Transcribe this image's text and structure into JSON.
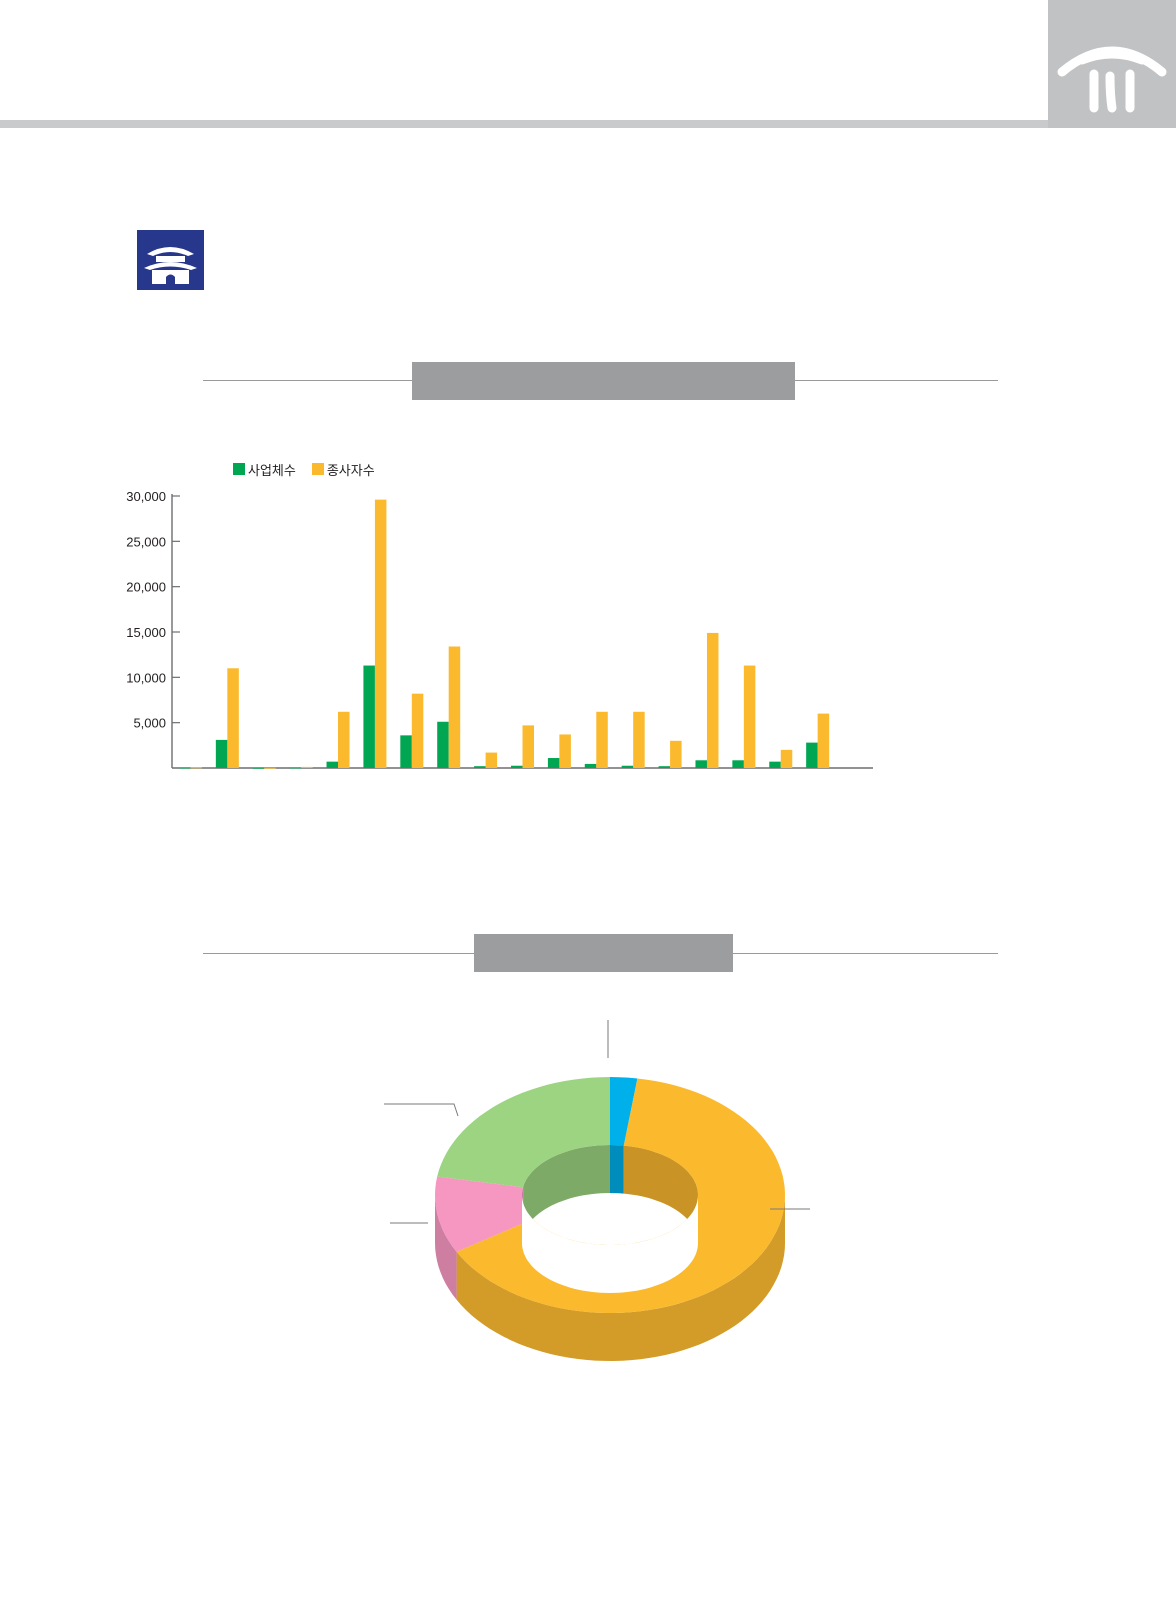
{
  "page": {
    "corner_logo": "nested-roof-logo-icon",
    "section_icon": "palace-gate-icon"
  },
  "colors": {
    "header_rule": "#c9cacb",
    "corner_tab": "#c1c2c3",
    "section_icon_bg": "#27378c",
    "title_bar": "#9b9d9e",
    "series_establishments": "#00a651",
    "series_workers": "#fbb92e",
    "donut_orange": "#fbb92e",
    "donut_green": "#9dd482",
    "donut_pink": "#f597c0",
    "donut_blue": "#00b0ea"
  },
  "chart_data": [
    {
      "type": "bar",
      "title": "",
      "xlabel": "",
      "ylabel": "",
      "ylim": [
        0,
        30000
      ],
      "yticks": [
        5000,
        10000,
        15000,
        20000,
        25000,
        30000
      ],
      "ytick_labels": [
        "5,000",
        "10,000",
        "15,000",
        "20,000",
        "25,000",
        "30,000"
      ],
      "legend_position": "top-left",
      "categories": [
        "",
        "",
        "",
        "",
        "",
        "",
        "",
        "",
        "",
        "",
        "",
        "",
        "",
        "",
        "",
        "",
        "",
        "",
        ""
      ],
      "series": [
        {
          "name": "사업체수",
          "color": "#00a651",
          "values": [
            30,
            3100,
            10,
            40,
            700,
            11300,
            3600,
            5100,
            200,
            250,
            1100,
            450,
            250,
            200,
            850,
            850,
            700,
            2800,
            0
          ]
        },
        {
          "name": "종사자수",
          "color": "#fbb92e",
          "values": [
            60,
            11000,
            20,
            120,
            6200,
            29600,
            8200,
            13400,
            1700,
            4700,
            3700,
            6200,
            6200,
            3000,
            14900,
            11300,
            2000,
            6000,
            0
          ]
        }
      ]
    },
    {
      "type": "pie",
      "style": "3d-donut",
      "title": "",
      "slices": [
        {
          "label": "",
          "value": 2.5,
          "color": "#00b0ea"
        },
        {
          "label": "",
          "value": 64.5,
          "color": "#fbb92e"
        },
        {
          "label": "",
          "value": 10.5,
          "color": "#f597c0"
        },
        {
          "label": "",
          "value": 22.5,
          "color": "#9dd482"
        }
      ]
    }
  ]
}
